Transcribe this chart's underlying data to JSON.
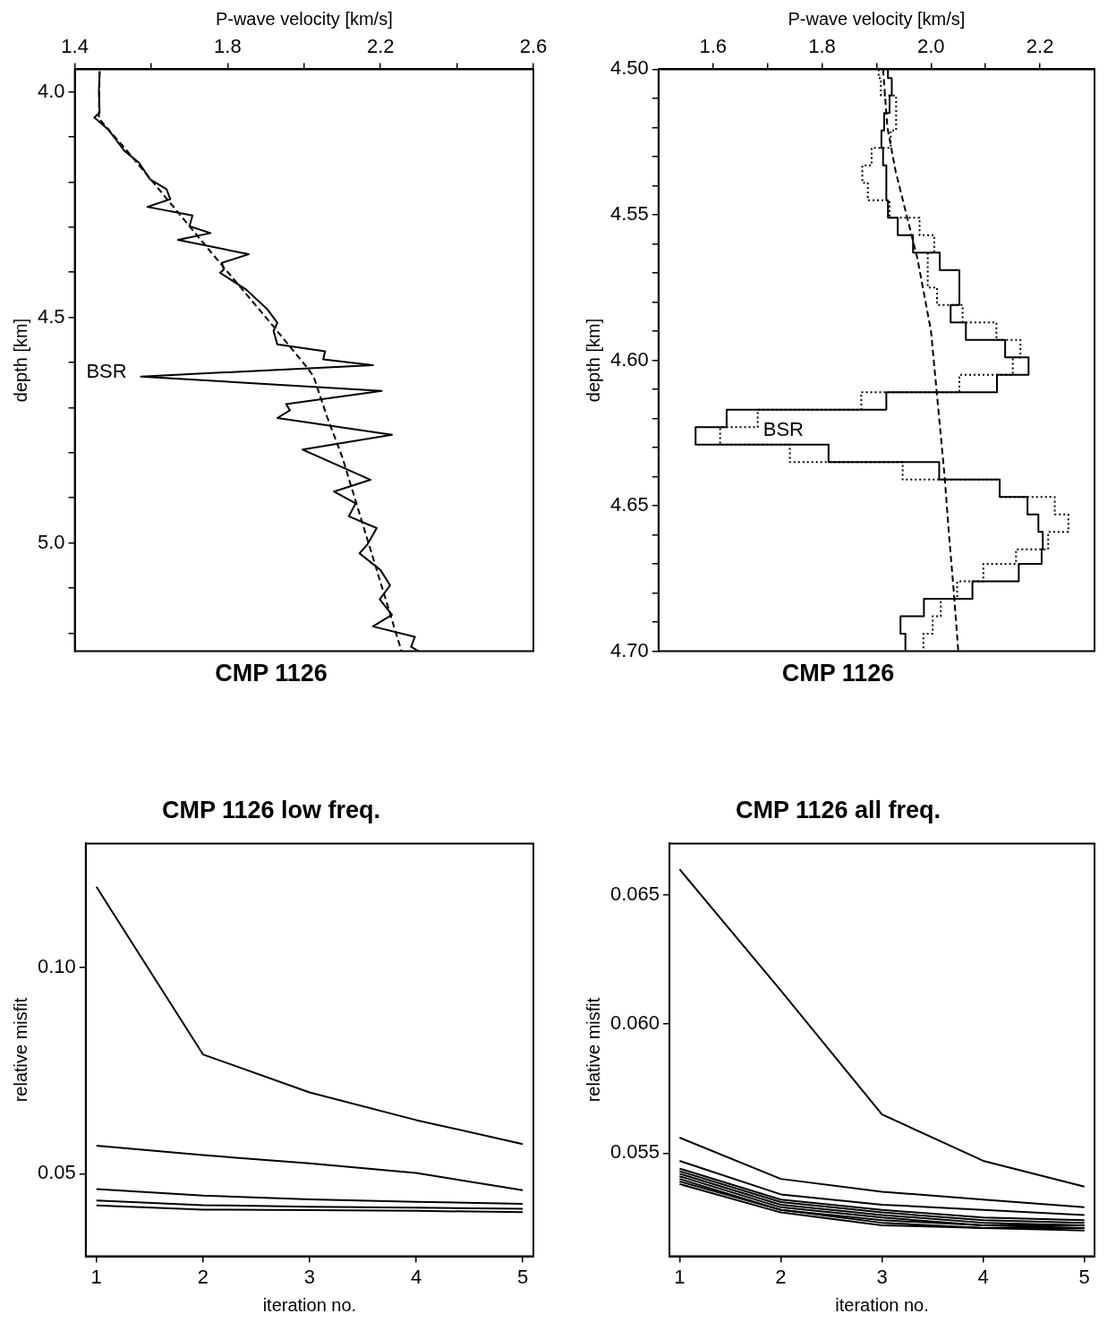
{
  "chart_data": [
    {
      "type": "line",
      "title": "CMP 1126",
      "xlabel": "P-wave velocity [km/s]",
      "ylabel": "depth [km]",
      "xlim": [
        1.4,
        2.6
      ],
      "xticks": [
        1.4,
        {
          "value": 1.6,
          "label": null
        },
        1.8,
        {
          "value": 2.0,
          "label": null
        },
        2.2,
        {
          "value": 2.4,
          "label": null
        },
        2.6
      ],
      "ylim": [
        5.24,
        3.95
      ],
      "yticks": [
        {
          "value": 4.0,
          "label": "4.0"
        },
        {
          "value": 4.1,
          "label": null
        },
        {
          "value": 4.2,
          "label": null
        },
        {
          "value": 4.3,
          "label": null
        },
        {
          "value": 4.4,
          "label": null
        },
        4.5,
        {
          "value": 4.6,
          "label": null
        },
        {
          "value": 4.7,
          "label": null
        },
        {
          "value": 4.8,
          "label": null
        },
        {
          "value": 4.9,
          "label": null
        },
        {
          "value": 5.0,
          "label": "5.0"
        },
        {
          "value": 5.1,
          "label": null
        },
        {
          "value": 5.2,
          "label": null
        }
      ],
      "grid": false,
      "legend": false,
      "series": [
        {
          "color": "#000000",
          "line_style": "solid",
          "x": [
            1.465,
            1.463,
            1.465,
            1.451,
            1.487,
            1.53,
            1.568,
            1.597,
            1.64,
            1.65,
            1.59,
            1.708,
            1.7,
            1.755,
            1.67,
            1.855,
            1.785,
            1.79,
            1.78,
            1.848,
            1.905,
            1.93,
            1.92,
            1.93,
            2.055,
            2.05,
            2.18,
            1.573,
            2.203,
            1.953,
            1.963,
            1.93,
            2.23,
            1.996,
            2.174,
            2.078,
            2.135,
            2.117,
            2.19,
            2.165,
            2.145,
            2.2,
            2.225,
            2.198,
            2.23,
            2.18,
            2.29,
            2.28,
            2.3
          ],
          "values": [
            3.954,
            4.0,
            4.046,
            4.057,
            4.083,
            4.131,
            4.157,
            4.194,
            4.216,
            4.238,
            4.255,
            4.274,
            4.298,
            4.313,
            4.328,
            4.36,
            4.379,
            4.394,
            4.401,
            4.438,
            4.483,
            4.512,
            4.53,
            4.56,
            4.575,
            4.593,
            4.606,
            4.631,
            4.663,
            4.692,
            4.706,
            4.723,
            4.76,
            4.793,
            4.86,
            4.886,
            4.912,
            4.941,
            4.967,
            5.004,
            5.023,
            5.06,
            5.094,
            5.125,
            5.159,
            5.185,
            5.208,
            5.23,
            5.24
          ]
        },
        {
          "color": "#000000",
          "line_style": "dashed",
          "x": [
            1.465,
            1.463,
            1.54,
            1.751,
            1.91,
            2.005,
            2.025,
            2.06,
            2.1,
            2.255
          ],
          "values": [
            3.955,
            4.059,
            4.134,
            4.35,
            4.51,
            4.608,
            4.631,
            4.72,
            4.81,
            5.24
          ]
        }
      ],
      "annotations": [
        "BSR"
      ]
    },
    {
      "type": "step",
      "title": "CMP 1126",
      "xlabel": "P-wave velocity [km/s]",
      "ylabel": "depth [km]",
      "xlim": [
        1.5,
        2.3
      ],
      "xticks": [
        1.6,
        {
          "value": 1.7,
          "label": null
        },
        1.8,
        {
          "value": 1.9,
          "label": null
        },
        {
          "value": 2.0,
          "label": "2.0"
        },
        {
          "value": 2.1,
          "label": null
        },
        2.2
      ],
      "ylim": [
        4.7,
        4.5
      ],
      "yticks": [
        {
          "value": 4.5,
          "label": "4.50"
        },
        {
          "value": 4.51,
          "label": null
        },
        {
          "value": 4.52,
          "label": null
        },
        {
          "value": 4.53,
          "label": null
        },
        {
          "value": 4.54,
          "label": null
        },
        4.55,
        {
          "value": 4.56,
          "label": null
        },
        {
          "value": 4.57,
          "label": null
        },
        {
          "value": 4.58,
          "label": null
        },
        {
          "value": 4.59,
          "label": null
        },
        {
          "value": 4.6,
          "label": "4.60"
        },
        {
          "value": 4.61,
          "label": null
        },
        {
          "value": 4.62,
          "label": null
        },
        {
          "value": 4.63,
          "label": null
        },
        {
          "value": 4.64,
          "label": null
        },
        4.65,
        {
          "value": 4.66,
          "label": null
        },
        {
          "value": 4.67,
          "label": null
        },
        {
          "value": 4.68,
          "label": null
        },
        {
          "value": 4.69,
          "label": null
        },
        {
          "value": 4.7,
          "label": "4.70"
        }
      ],
      "grid": false,
      "legend": false,
      "series": [
        {
          "color": "#000000",
          "line_style": "solid",
          "x": [
            1.921,
            1.928,
            1.924,
            1.914,
            1.909,
            1.912,
            1.918,
            1.918,
            1.921,
            1.939,
            1.967,
            2.016,
            2.052,
            2.052,
            2.036,
            2.064,
            2.136,
            2.179,
            2.121,
            1.918,
            1.625,
            1.568,
            1.812,
            2.015,
            2.126,
            2.177,
            2.197,
            2.205,
            2.203,
            2.161,
            2.076,
            1.987,
            1.944,
            1.953,
            1.953
          ],
          "values": [
            4.5,
            4.503,
            4.509,
            4.515,
            4.521,
            4.527,
            4.533,
            4.539,
            4.545,
            4.551,
            4.557,
            4.563,
            4.569,
            4.575,
            4.581,
            4.587,
            4.593,
            4.599,
            4.605,
            4.611,
            4.617,
            4.623,
            4.629,
            4.635,
            4.641,
            4.647,
            4.653,
            4.659,
            4.665,
            4.67,
            4.676,
            4.682,
            4.688,
            4.694,
            4.7
          ]
        },
        {
          "color": "#000000",
          "line_style": "dotted",
          "x": [
            1.904,
            1.908,
            1.936,
            1.936,
            1.926,
            1.891,
            1.874,
            1.884,
            1.924,
            1.979,
            2.006,
            1.994,
            1.994,
            2.011,
            2.058,
            2.12,
            2.164,
            2.15,
            2.052,
            1.872,
            1.682,
            1.613,
            1.741,
            1.948,
            2.126,
            2.227,
            2.252,
            2.215,
            2.156,
            2.096,
            2.048,
            2.018,
            2.003,
            1.986,
            1.986
          ],
          "values": [
            4.5,
            4.503,
            4.509,
            4.515,
            4.521,
            4.527,
            4.533,
            4.539,
            4.545,
            4.551,
            4.557,
            4.563,
            4.569,
            4.575,
            4.581,
            4.587,
            4.593,
            4.599,
            4.605,
            4.611,
            4.617,
            4.623,
            4.629,
            4.635,
            4.641,
            4.647,
            4.653,
            4.659,
            4.665,
            4.67,
            4.676,
            4.682,
            4.688,
            4.694,
            4.7
          ]
        },
        {
          "type": "line",
          "color": "#000000",
          "line_style": "dashed",
          "x": [
            1.912,
            1.92,
            1.935,
            1.955,
            1.975,
            1.99,
            2.0,
            2.005,
            2.015,
            2.025,
            2.033,
            2.042,
            2.05
          ],
          "values": [
            4.5,
            4.52,
            4.535,
            4.55,
            4.565,
            4.58,
            4.59,
            4.6,
            4.62,
            4.64,
            4.66,
            4.68,
            4.7
          ]
        }
      ],
      "annotations": [
        "BSR"
      ]
    },
    {
      "type": "line",
      "title": "CMP 1126 low freq.",
      "xlabel": "iteration no.",
      "ylabel": "relative misfit",
      "xlim": [
        0.9,
        5.1
      ],
      "xticks": [
        1,
        2,
        3,
        4,
        5
      ],
      "ylim": [
        0.03,
        0.13
      ],
      "yticks": [
        0.05,
        {
          "value": 0.1,
          "label": "0.10"
        }
      ],
      "grid": false,
      "legend": false,
      "x": [
        1,
        2,
        3,
        4,
        5
      ],
      "series": [
        {
          "color": "#000000",
          "values": [
            0.1195,
            0.0789,
            0.0697,
            0.063,
            0.0572
          ]
        },
        {
          "color": "#000000",
          "values": [
            0.0568,
            0.0545,
            0.0525,
            0.0502,
            0.046
          ]
        },
        {
          "color": "#000000",
          "values": [
            0.0463,
            0.0447,
            0.0438,
            0.0432,
            0.0427
          ]
        },
        {
          "color": "#000000",
          "values": [
            0.0435,
            0.0424,
            0.042,
            0.0418,
            0.0415
          ]
        },
        {
          "color": "#000000",
          "values": [
            0.0423,
            0.0413,
            0.0412,
            0.041,
            0.0407
          ]
        }
      ]
    },
    {
      "type": "line",
      "title": "CMP 1126 all freq.",
      "xlabel": "iteration no.",
      "ylabel": "relative misfit",
      "xlim": [
        0.9,
        5.1
      ],
      "xticks": [
        1,
        2,
        3,
        4,
        5
      ],
      "ylim": [
        0.051,
        0.067
      ],
      "yticks": [
        0.055,
        {
          "value": 0.06,
          "label": "0.060"
        },
        0.065
      ],
      "grid": false,
      "legend": false,
      "x": [
        1,
        2,
        3,
        4,
        5
      ],
      "series": [
        {
          "color": "#000000",
          "values": [
            0.066,
            0.0613,
            0.0565,
            0.0547,
            0.0537
          ]
        },
        {
          "color": "#000000",
          "values": [
            0.0556,
            0.054,
            0.0535,
            0.0532,
            0.0529
          ]
        },
        {
          "color": "#000000",
          "values": [
            0.0547,
            0.0534,
            0.053,
            0.0528,
            0.0526
          ]
        },
        {
          "color": "#000000",
          "values": [
            0.0544,
            0.0532,
            0.0528,
            0.0525,
            0.0524
          ]
        },
        {
          "color": "#000000",
          "values": [
            0.0543,
            0.0531,
            0.0527,
            0.0524,
            0.0523
          ]
        },
        {
          "color": "#000000",
          "values": [
            0.0542,
            0.053,
            0.0526,
            0.0523,
            0.0522
          ]
        },
        {
          "color": "#000000",
          "values": [
            0.0541,
            0.0529,
            0.0525,
            0.0522,
            0.0522
          ]
        },
        {
          "color": "#000000",
          "values": [
            0.054,
            0.0528,
            0.0524,
            0.0522,
            0.0521
          ]
        },
        {
          "color": "#000000",
          "values": [
            0.0539,
            0.0528,
            0.0523,
            0.0521,
            0.0521
          ]
        },
        {
          "color": "#000000",
          "values": [
            0.0538,
            0.0527,
            0.0522,
            0.0521,
            0.052
          ]
        }
      ]
    }
  ]
}
